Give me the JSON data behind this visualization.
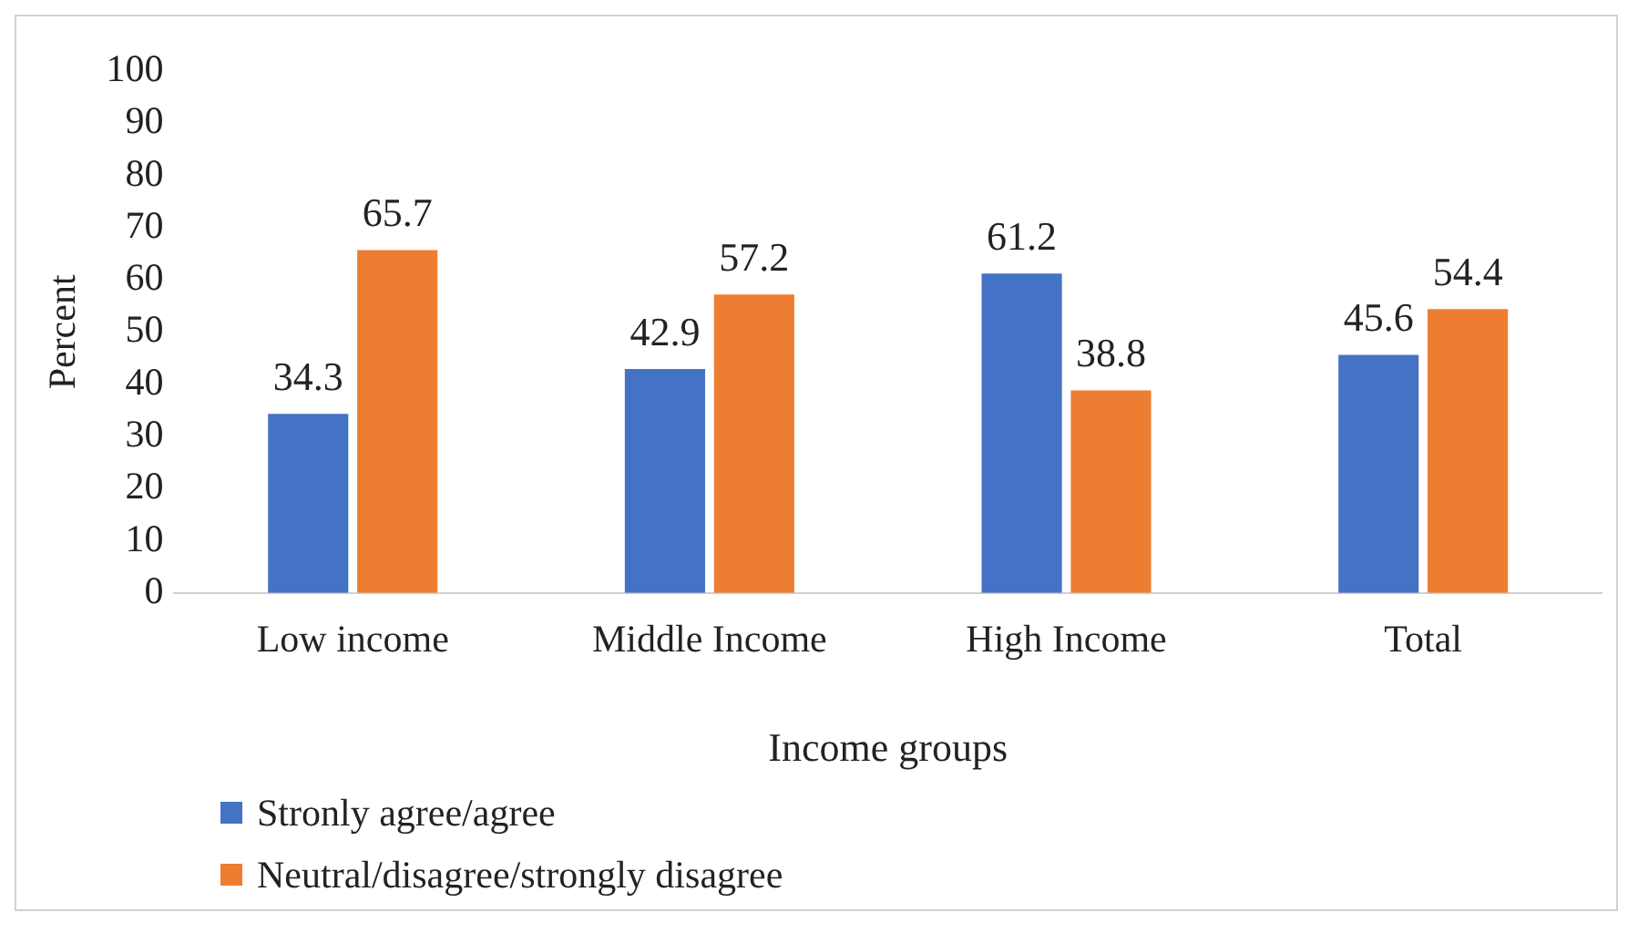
{
  "chart_data": {
    "type": "bar",
    "xlabel": "Income groups",
    "ylabel": "Percent",
    "categories": [
      "Low income",
      "Middle Income",
      "High Income",
      "Total"
    ],
    "series": [
      {
        "name": "Stronly agree/agree",
        "color": "#4472c4",
        "values": [
          34.3,
          42.9,
          61.2,
          45.6
        ]
      },
      {
        "name": "Neutral/disagree/strongly disagree",
        "color": "#ed7d31",
        "values": [
          65.7,
          57.2,
          38.8,
          54.4
        ]
      }
    ],
    "ylim": [
      0,
      100
    ],
    "yticks": [
      0,
      10,
      20,
      30,
      40,
      50,
      60,
      70,
      80,
      90,
      100
    ],
    "grid": false,
    "legend": "bottom left",
    "data_labels": true
  }
}
